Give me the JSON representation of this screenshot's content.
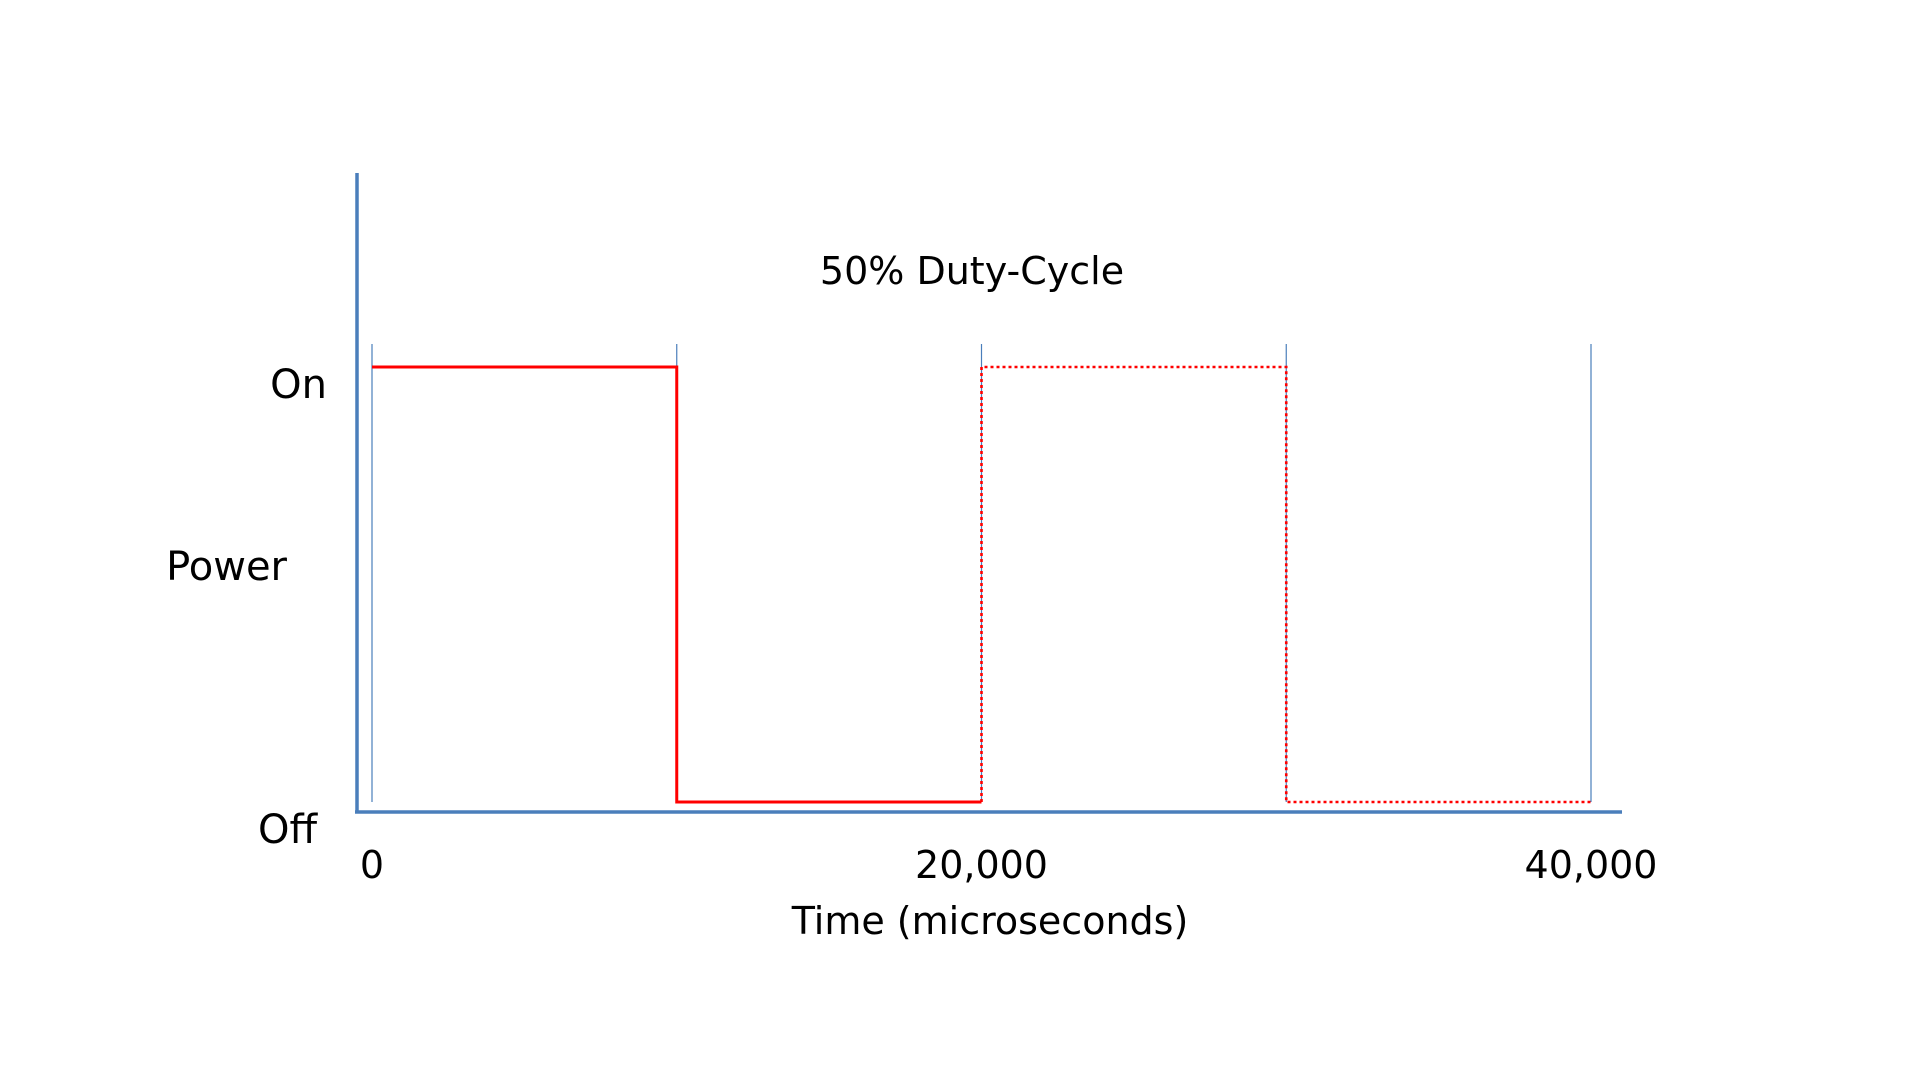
{
  "chart_data": {
    "type": "line",
    "title": "50% Duty-Cycle",
    "xlabel": "Time (microseconds)",
    "ylabel": "Power",
    "xlim": [
      0,
      40000
    ],
    "ylim": [
      "Off",
      "On"
    ],
    "y_levels": [
      "Off",
      "On"
    ],
    "x_ticks": [
      0,
      20000,
      40000
    ],
    "x_tick_labels": [
      "0",
      "20,000",
      "40,000"
    ],
    "period_markers": [
      0,
      10000,
      20000,
      30000,
      40000
    ],
    "series": [
      {
        "style": "solid",
        "points": [
          {
            "x": 0,
            "y": "On"
          },
          {
            "x": 10000,
            "y": "On"
          },
          {
            "x": 10000,
            "y": "Off"
          },
          {
            "x": 20000,
            "y": "Off"
          }
        ]
      },
      {
        "style": "dotted",
        "points": [
          {
            "x": 20000,
            "y": "Off"
          },
          {
            "x": 20000,
            "y": "On"
          },
          {
            "x": 30000,
            "y": "On"
          },
          {
            "x": 30000,
            "y": "Off"
          },
          {
            "x": 40000,
            "y": "Off"
          }
        ]
      }
    ],
    "colors": {
      "axis": "#4a7ebb",
      "signal": "#ff0000",
      "marker": "#4a7ebb"
    },
    "grid": false,
    "legend": "none"
  }
}
